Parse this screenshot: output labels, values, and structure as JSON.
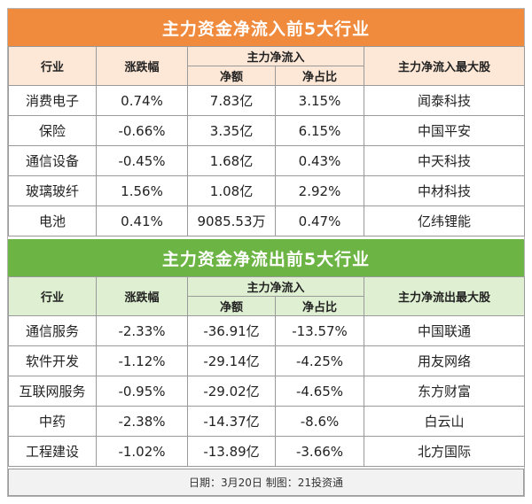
{
  "inflow": {
    "title": "主力资金净流入前5大行业",
    "headers": {
      "industry": "行业",
      "change": "涨跌幅",
      "group": "主力净流入",
      "amount": "净额",
      "ratio": "净占比",
      "top_stock": "主力净流入最大股"
    },
    "rows": [
      {
        "industry": "消费电子",
        "change": "0.74%",
        "amount": "7.83亿",
        "ratio": "3.15%",
        "stock": "闻泰科技"
      },
      {
        "industry": "保险",
        "change": "-0.66%",
        "amount": "3.35亿",
        "ratio": "6.15%",
        "stock": "中国平安"
      },
      {
        "industry": "通信设备",
        "change": "-0.45%",
        "amount": "1.68亿",
        "ratio": "0.43%",
        "stock": "中天科技"
      },
      {
        "industry": "玻璃玻纤",
        "change": "1.56%",
        "amount": "1.08亿",
        "ratio": "2.92%",
        "stock": "中材科技"
      },
      {
        "industry": "电池",
        "change": "0.41%",
        "amount": "9085.53万",
        "ratio": "0.47%",
        "stock": "亿纬锂能"
      }
    ]
  },
  "outflow": {
    "title": "主力资金净流出前5大行业",
    "headers": {
      "industry": "行业",
      "change": "涨跌幅",
      "group": "主力净流入",
      "amount": "净额",
      "ratio": "净占比",
      "top_stock": "主力净流出最大股"
    },
    "rows": [
      {
        "industry": "通信服务",
        "change": "-2.33%",
        "amount": "-36.91亿",
        "ratio": "-13.57%",
        "stock": "中国联通"
      },
      {
        "industry": "软件开发",
        "change": "-1.12%",
        "amount": "-29.14亿",
        "ratio": "-4.25%",
        "stock": "用友网络"
      },
      {
        "industry": "互联网服务",
        "change": "-0.95%",
        "amount": "-29.02亿",
        "ratio": "-4.65%",
        "stock": "东方财富"
      },
      {
        "industry": "中药",
        "change": "-2.38%",
        "amount": "-14.37亿",
        "ratio": "-8.6%",
        "stock": "白云山"
      },
      {
        "industry": "工程建设",
        "change": "-1.02%",
        "amount": "-13.89亿",
        "ratio": "-3.66%",
        "stock": "北方国际"
      }
    ]
  },
  "footer": "日期：3月20日 制图：21投资通",
  "colors": {
    "inflow_accent": "#f08a3c",
    "outflow_accent": "#6cb443"
  }
}
